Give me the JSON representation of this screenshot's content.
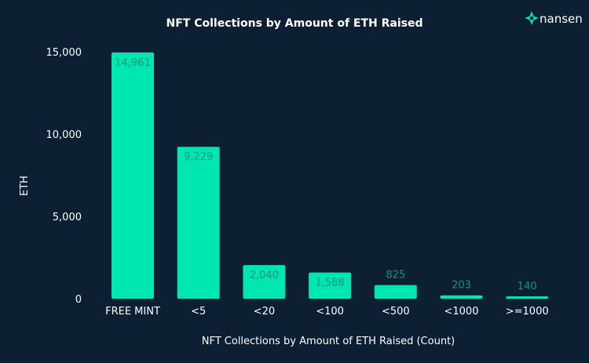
{
  "brand": {
    "name": "nansen",
    "accent": "#00e6b0"
  },
  "chart_data": {
    "type": "bar",
    "title": "NFT Collections by Amount of ETH Raised",
    "xlabel": "NFT Collections by Amount of ETH Raised (Count)",
    "ylabel": "ETH",
    "categories": [
      "FREE MINT",
      "<5",
      "<20",
      "<100",
      "<500",
      "<1000",
      ">=1000"
    ],
    "values": [
      14961,
      9229,
      2040,
      1588,
      825,
      203,
      140
    ],
    "data_labels": [
      "14,961",
      "9,229",
      "2,040",
      "1,588",
      "825",
      "203",
      "140"
    ],
    "ylim": [
      0,
      15000
    ],
    "yticks": [
      0,
      5000,
      10000,
      15000
    ],
    "ytick_labels": [
      "0",
      "5,000",
      "10,000",
      "15,000"
    ],
    "grid": false,
    "legend": "none",
    "bar_color": "#00e6b0",
    "label_color": "#17967a",
    "background": "#0c1f33"
  }
}
